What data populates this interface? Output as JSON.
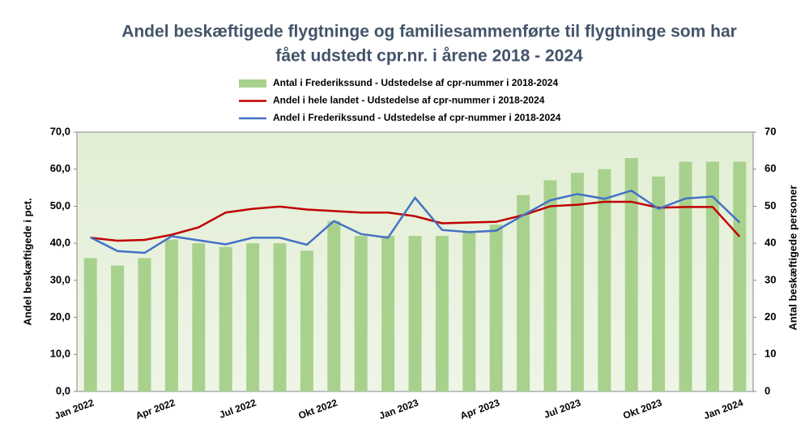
{
  "chart_data": {
    "type": "bar_line",
    "title": [
      "Andel beskæftigede flygtninge og familiesammenførte til flygtninge som har",
      "fået udstedt cpr.nr. i årene 2018 - 2024"
    ],
    "y_label": "Andel beskæftigede i pct.",
    "y2_label": "Antal beskæftigede personer",
    "categories": [
      "Jan 2022",
      null,
      null,
      "Apr 2022",
      null,
      null,
      "Jul 2022",
      null,
      null,
      "Okt 2022",
      null,
      null,
      "Jan 2023",
      null,
      null,
      "Apr 2023",
      null,
      null,
      "Jul 2023",
      null,
      null,
      "Okt 2023",
      null,
      null,
      "Jan 2024"
    ],
    "series": [
      {
        "name": "Antal i Frederikssund - Udstedelse af cpr-nummer i 2018-2024",
        "type": "bar",
        "axis": "y2",
        "color": "#a9d18e",
        "values": [
          36,
          34,
          36,
          41,
          40,
          39,
          40,
          40,
          38,
          46,
          42,
          42,
          42,
          42,
          43,
          45,
          53,
          57,
          59,
          60,
          63,
          58,
          62,
          62,
          62
        ]
      },
      {
        "name": "Andel i hele landet - Udstedelse af cpr-nummer i 2018-2024",
        "type": "line",
        "color": "#c00000",
        "values": [
          41.5,
          40.7,
          40.9,
          42.3,
          44.3,
          48.3,
          49.3,
          49.9,
          49.1,
          48.7,
          48.3,
          48.3,
          47.3,
          45.4,
          45.6,
          45.8,
          47.6,
          50.0,
          50.4,
          51.2,
          51.2,
          49.6,
          49.8,
          49.8,
          41.8
        ]
      },
      {
        "name": "Andel i Frederikssund - Udstedelse af cpr-nummer i 2018-2024",
        "type": "line",
        "color": "#4472c4",
        "values": [
          41.6,
          37.9,
          37.4,
          41.9,
          40.8,
          39.7,
          41.5,
          41.5,
          39.6,
          46.0,
          42.5,
          41.5,
          52.3,
          43.6,
          43.0,
          43.4,
          47.6,
          51.6,
          53.3,
          52.0,
          54.2,
          49.3,
          52.1,
          52.6,
          45.6
        ]
      }
    ],
    "ylim": [
      0,
      70
    ],
    "yticks": [
      {
        "value": 0,
        "label": "0,0"
      },
      {
        "value": 10,
        "label": "10,0"
      },
      {
        "value": 20,
        "label": "20,0"
      },
      {
        "value": 30,
        "label": "30,0"
      },
      {
        "value": 40,
        "label": "40,0"
      },
      {
        "value": 50,
        "label": "50,0"
      },
      {
        "value": 60,
        "label": "60,0"
      },
      {
        "value": 70,
        "label": "70,0"
      }
    ],
    "y2lim": [
      0,
      70
    ],
    "y2ticks": [
      0,
      10,
      20,
      30,
      40,
      50,
      60,
      70
    ],
    "legend": "top"
  }
}
